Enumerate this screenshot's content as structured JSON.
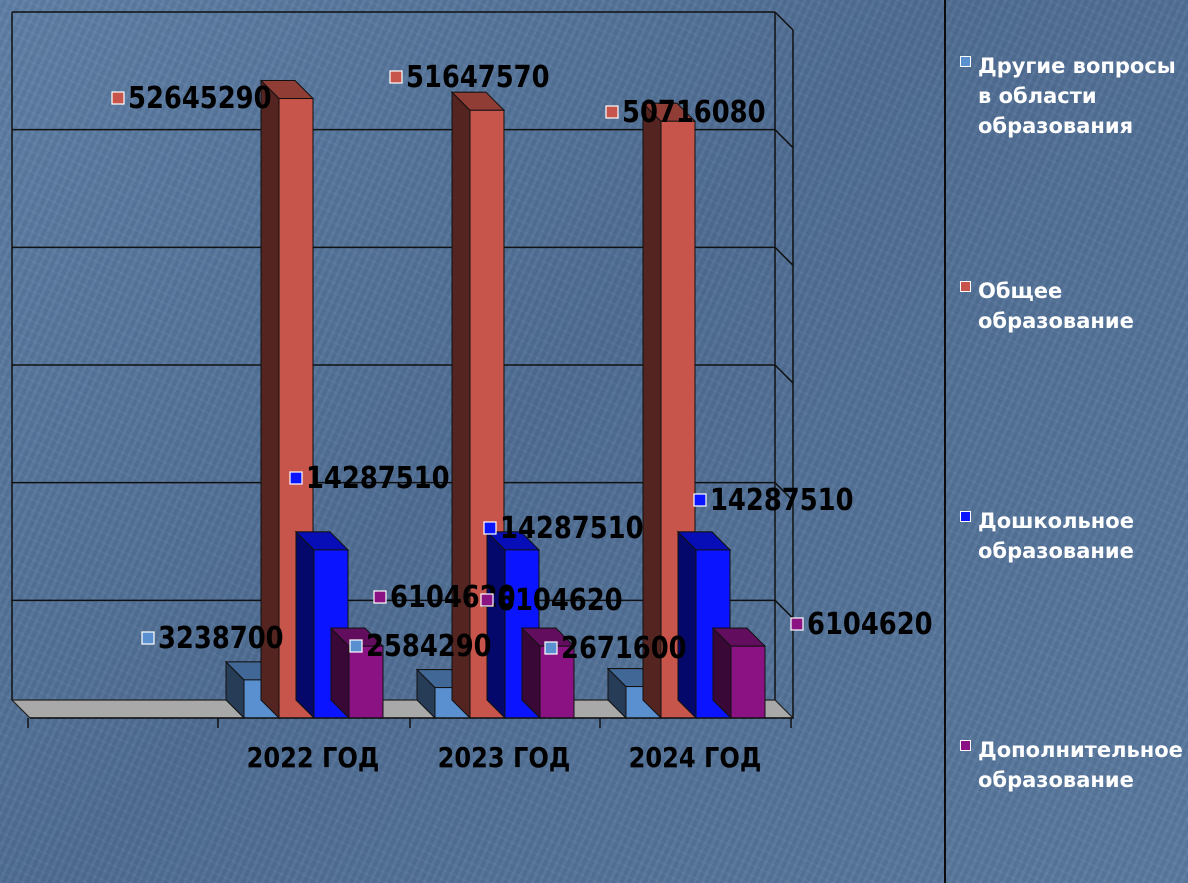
{
  "chart_data": {
    "type": "bar",
    "categories": [
      "2022 ГОД",
      "2023 ГОД",
      "2024 ГОД"
    ],
    "ylim": [
      0,
      60000000
    ],
    "grid": true,
    "legend_position": "right",
    "series": [
      {
        "name": "Другие вопросы в области образования",
        "color": "#5a8fd0",
        "values": [
          3238700,
          2584290,
          2671600
        ],
        "labels": [
          "3238700",
          "2584290",
          "2671600"
        ]
      },
      {
        "name": "Общее образование",
        "color": "#c8554b",
        "values": [
          52645290,
          51647570,
          50716080
        ],
        "labels": [
          "52645290",
          "51647570",
          "50716080"
        ]
      },
      {
        "name": "Дошкольное образование",
        "color": "#0a14ff",
        "values": [
          14287510,
          14287510,
          14287510
        ],
        "labels": [
          "14287510",
          "14287510",
          "14287510"
        ]
      },
      {
        "name": "Дополнительное образование",
        "color": "#8a1283",
        "values": [
          6104620,
          6104620,
          6104620
        ],
        "labels": [
          "6104620",
          "6104620",
          "6104620"
        ]
      }
    ]
  },
  "legend": {
    "items": [
      {
        "label": "Другие вопросы\nв области\nобразования",
        "color": "#5a8fd0"
      },
      {
        "label": "Общее\nобразование",
        "color": "#c8554b"
      },
      {
        "label": "Дошкольное\nобразование",
        "color": "#0a14ff"
      },
      {
        "label": "Дополнительное\nобразование",
        "color": "#8a1283"
      }
    ]
  }
}
